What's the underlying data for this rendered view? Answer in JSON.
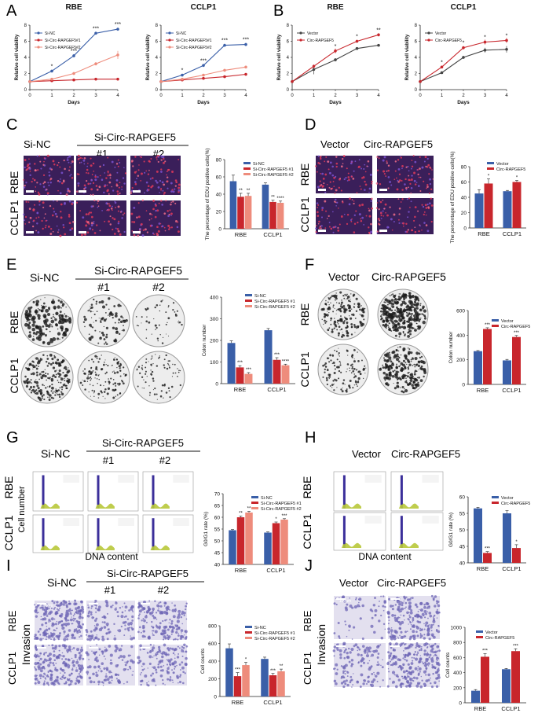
{
  "colors": {
    "blue": "#3a5fa8",
    "red": "#c8262c",
    "salmon": "#ee8c7c",
    "grey": "#444444",
    "edu_bg": "#3a1f5a",
    "colony": "#1a1a1a",
    "invasion": "#6d66b5",
    "flow_fill": "#b8c83a",
    "flow_peak": "#3b2f9a"
  },
  "panels": {
    "A": {
      "letter": "A"
    },
    "B": {
      "letter": "B"
    },
    "C": {
      "letter": "C",
      "group1": "Si-NC",
      "group2": "Si-Circ-RAPGEF5",
      "sub1": "#1",
      "sub2": "#2",
      "row1": "RBE",
      "row2": "CCLP1"
    },
    "D": {
      "letter": "D",
      "group1": "Vector",
      "group2": "Circ-RAPGEF5",
      "row1": "RBE",
      "row2": "CCLP1"
    },
    "E": {
      "letter": "E",
      "group1": "Si-NC",
      "group2": "Si-Circ-RAPGEF5",
      "sub1": "#1",
      "sub2": "#2",
      "row1": "RBE",
      "row2": "CCLP1"
    },
    "F": {
      "letter": "F",
      "group1": "Vector",
      "group2": "Circ-RAPGEF5",
      "row1": "RBE",
      "row2": "CCLP1"
    },
    "G": {
      "letter": "G",
      "group1": "Si-NC",
      "group2": "Si-Circ-RAPGEF5",
      "sub1": "#1",
      "sub2": "#2",
      "row1": "RBE",
      "row2": "CCLP1",
      "ylab": "Cell number",
      "xlab": "DNA content"
    },
    "H": {
      "letter": "H",
      "group1": "Vector",
      "group2": "Circ-RAPGEF5",
      "row1": "RBE",
      "row2": "CCLP1",
      "xlab": "DNA content"
    },
    "I": {
      "letter": "I",
      "group1": "Si-NC",
      "group2": "Si-Circ-RAPGEF5",
      "sub1": "#1",
      "sub2": "#2",
      "row1": "RBE",
      "row2": "CCLP1",
      "side": "Invasion",
      "scale": "100um"
    },
    "J": {
      "letter": "J",
      "group1": "Vector",
      "group2": "Circ-RAPGEF5",
      "row1": "RBE",
      "row2": "CCLP1",
      "side": "Invasion",
      "scale": "100um"
    }
  },
  "chart_data": [
    {
      "id": "A1",
      "type": "line",
      "title": "RBE",
      "xlabel": "Days",
      "ylabel": "Relative cell viability",
      "x": [
        0,
        1,
        2,
        3,
        4
      ],
      "xlim": [
        0,
        4
      ],
      "ylim": [
        0,
        8
      ],
      "yticks": [
        0,
        2,
        4,
        6,
        8
      ],
      "series": [
        {
          "name": "Si-NC",
          "color": "blue",
          "values": [
            1,
            2.3,
            4.2,
            7.0,
            7.5
          ],
          "err": [
            0.1,
            0.1,
            0.2,
            0.2,
            0.2
          ]
        },
        {
          "name": "Si-Circ-RAPGEF5#1",
          "color": "red",
          "values": [
            1,
            1.1,
            1.2,
            1.3,
            1.3
          ],
          "err": [
            0.05,
            0.05,
            0.1,
            0.1,
            0.1
          ]
        },
        {
          "name": "Si-Circ-RAPGEF5#2",
          "color": "salmon",
          "values": [
            1,
            1.3,
            2.0,
            3.2,
            4.3
          ],
          "err": [
            0.05,
            0.1,
            0.2,
            0.2,
            0.5
          ]
        }
      ],
      "sig": [
        {
          "x": 1,
          "y": 2.3,
          "t": "*"
        },
        {
          "x": 2,
          "y": 4.2,
          "t": "***"
        },
        {
          "x": 3,
          "y": 7.0,
          "t": "***"
        },
        {
          "x": 4,
          "y": 7.5,
          "t": "***"
        }
      ]
    },
    {
      "id": "A2",
      "type": "line",
      "title": "CCLP1",
      "xlabel": "Days",
      "ylabel": "Relative cell viability",
      "x": [
        0,
        1,
        2,
        3,
        4
      ],
      "xlim": [
        0,
        4
      ],
      "ylim": [
        0,
        8
      ],
      "yticks": [
        0,
        2,
        4,
        6,
        8
      ],
      "series": [
        {
          "name": "Si-NC",
          "color": "blue",
          "values": [
            1,
            1.8,
            3.0,
            5.5,
            5.6
          ],
          "err": [
            0.1,
            0.1,
            0.2,
            0.2,
            0.2
          ]
        },
        {
          "name": "Si-Circ-RAPGEF5#1",
          "color": "red",
          "values": [
            1,
            1.2,
            1.4,
            1.6,
            1.9
          ],
          "err": [
            0.05,
            0.05,
            0.1,
            0.1,
            0.1
          ]
        },
        {
          "name": "Si-Circ-RAPGEF5#2",
          "color": "salmon",
          "values": [
            1,
            1.3,
            1.8,
            2.4,
            2.8
          ],
          "err": [
            0.05,
            0.1,
            0.1,
            0.1,
            0.1
          ]
        }
      ],
      "sig": [
        {
          "x": 1,
          "y": 1.8,
          "t": "*"
        },
        {
          "x": 2,
          "y": 3.0,
          "t": "***"
        },
        {
          "x": 3,
          "y": 5.5,
          "t": "***"
        },
        {
          "x": 4,
          "y": 5.6,
          "t": "***"
        }
      ]
    },
    {
      "id": "B1",
      "type": "line",
      "title": "RBE",
      "xlabel": "Days",
      "ylabel": "Relative cell viability",
      "x": [
        0,
        1,
        2,
        3,
        4
      ],
      "xlim": [
        0,
        4
      ],
      "ylim": [
        0,
        8
      ],
      "yticks": [
        0,
        2,
        4,
        6,
        8
      ],
      "series": [
        {
          "name": "Vector",
          "color": "grey",
          "values": [
            1,
            2.5,
            3.7,
            5.1,
            5.5
          ],
          "err": [
            0.1,
            0.6,
            0.2,
            0.1,
            0.1
          ]
        },
        {
          "name": "Circ-RAPGEF5",
          "color": "red",
          "values": [
            1,
            2.9,
            4.8,
            6.0,
            6.8
          ],
          "err": [
            0.1,
            0.2,
            0.3,
            0.2,
            0.2
          ]
        }
      ],
      "sig": [
        {
          "x": 2,
          "y": 4.8,
          "t": "*"
        },
        {
          "x": 3,
          "y": 6.0,
          "t": "*"
        },
        {
          "x": 4,
          "y": 6.8,
          "t": "**"
        }
      ]
    },
    {
      "id": "B2",
      "type": "line",
      "title": "CCLP1",
      "xlabel": "Days",
      "ylabel": "Relative cell viability",
      "x": [
        0,
        1,
        2,
        3,
        4
      ],
      "xlim": [
        0,
        4
      ],
      "ylim": [
        0,
        8
      ],
      "yticks": [
        0,
        2,
        4,
        6,
        8
      ],
      "series": [
        {
          "name": "Vector",
          "color": "grey",
          "values": [
            1,
            2.1,
            4.0,
            4.9,
            5.0
          ],
          "err": [
            0.1,
            0.1,
            0.2,
            0.3,
            0.4
          ]
        },
        {
          "name": "Circ-RAPGEF5",
          "color": "red",
          "values": [
            1,
            2.8,
            5.2,
            5.9,
            6.1
          ],
          "err": [
            0.1,
            0.1,
            0.2,
            0.3,
            0.3
          ]
        }
      ],
      "sig": [
        {
          "x": 1,
          "y": 2.8,
          "t": "*"
        },
        {
          "x": 2,
          "y": 5.2,
          "t": "*"
        },
        {
          "x": 3,
          "y": 5.9,
          "t": "*"
        },
        {
          "x": 4,
          "y": 6.1,
          "t": "*"
        }
      ]
    },
    {
      "id": "C",
      "type": "bar",
      "ylabel": "The percentage of EDU positive cells(%)",
      "categories": [
        "RBE",
        "CCLP1"
      ],
      "ylim": [
        0,
        80
      ],
      "yticks": [
        0,
        20,
        40,
        60,
        80
      ],
      "series": [
        {
          "name": "Si-NC",
          "color": "blue",
          "values": [
            55,
            51
          ],
          "err": [
            7,
            2
          ],
          "sig": [
            "",
            ""
          ]
        },
        {
          "name": "Si-Circ-RAPGEF5 #1",
          "color": "red",
          "values": [
            37,
            31
          ],
          "err": [
            4,
            2
          ],
          "sig": [
            "**",
            "**"
          ]
        },
        {
          "name": "Si-Circ-RAPGEF5 #2",
          "color": "salmon",
          "values": [
            38,
            30
          ],
          "err": [
            3,
            2
          ],
          "sig": [
            "**",
            "****"
          ]
        }
      ]
    },
    {
      "id": "D",
      "type": "bar",
      "ylabel": "The percentage of EDU positive cells(%)",
      "categories": [
        "RBE",
        "CCLP1"
      ],
      "ylim": [
        0,
        80
      ],
      "yticks": [
        0,
        20,
        40,
        60,
        80
      ],
      "series": [
        {
          "name": "Vector",
          "color": "blue",
          "values": [
            45,
            48
          ],
          "err": [
            5,
            1
          ],
          "sig": [
            "",
            ""
          ]
        },
        {
          "name": "Circ-RAPGEF5",
          "color": "red",
          "values": [
            58,
            60
          ],
          "err": [
            6,
            2
          ],
          "sig": [
            "*",
            "*"
          ]
        }
      ]
    },
    {
      "id": "E",
      "type": "bar",
      "ylabel": "Colon number",
      "categories": [
        "RBE",
        "CCLP1"
      ],
      "ylim": [
        0,
        400
      ],
      "yticks": [
        0,
        100,
        200,
        300,
        400
      ],
      "series": [
        {
          "name": "Si-NC",
          "color": "blue",
          "values": [
            188,
            247
          ],
          "err": [
            10,
            8
          ],
          "sig": [
            "",
            ""
          ]
        },
        {
          "name": "Si-Circ-RAPGEF5 #1",
          "color": "red",
          "values": [
            75,
            110
          ],
          "err": [
            8,
            10
          ],
          "sig": [
            "***",
            "***"
          ]
        },
        {
          "name": "Si-Circ-RAPGEF5 #2",
          "color": "salmon",
          "values": [
            45,
            85
          ],
          "err": [
            6,
            5
          ],
          "sig": [
            "***",
            "****"
          ]
        }
      ]
    },
    {
      "id": "F",
      "type": "bar",
      "ylabel": "Colon number",
      "categories": [
        "RBE",
        "CCLP1"
      ],
      "ylim": [
        0,
        600
      ],
      "yticks": [
        0,
        200,
        400,
        600
      ],
      "series": [
        {
          "name": "Vector",
          "color": "blue",
          "values": [
            270,
            195
          ],
          "err": [
            5,
            8
          ],
          "sig": [
            "",
            ""
          ]
        },
        {
          "name": "Circ-RAPGEF5",
          "color": "red",
          "values": [
            450,
            385
          ],
          "err": [
            10,
            12
          ],
          "sig": [
            "***",
            "***"
          ]
        }
      ]
    },
    {
      "id": "G",
      "type": "bar",
      "ylabel": "G0/G1 rate (%)",
      "categories": [
        "RBE",
        "CCLP1"
      ],
      "ylim": [
        40,
        70
      ],
      "yticks": [
        40,
        45,
        50,
        55,
        60,
        65,
        70
      ],
      "series": [
        {
          "name": "Si-NC",
          "color": "blue",
          "values": [
            54.5,
            53.5
          ],
          "err": [
            0.3,
            0.3
          ],
          "sig": [
            "",
            ""
          ]
        },
        {
          "name": "Si-Circ-RAPGEF5 #1",
          "color": "red",
          "values": [
            60,
            57.5
          ],
          "err": [
            0.5,
            0.5
          ],
          "sig": [
            "**",
            "*"
          ]
        },
        {
          "name": "Si-Circ-RAPGEF5 #2",
          "color": "salmon",
          "values": [
            62,
            59
          ],
          "err": [
            0.5,
            0.4
          ],
          "sig": [
            "**",
            "***"
          ]
        }
      ]
    },
    {
      "id": "H",
      "type": "bar",
      "ylabel": "G0/G1 rate (%)",
      "categories": [
        "RBE",
        "CCLP1"
      ],
      "ylim": [
        40,
        60
      ],
      "yticks": [
        40,
        45,
        50,
        55,
        60
      ],
      "series": [
        {
          "name": "Vector",
          "color": "blue",
          "values": [
            56.5,
            55
          ],
          "err": [
            0.3,
            0.8
          ],
          "sig": [
            "",
            ""
          ]
        },
        {
          "name": "Circ-RAPGEF5",
          "color": "red",
          "values": [
            43,
            44.5
          ],
          "err": [
            0.4,
            1
          ],
          "sig": [
            "***",
            "*"
          ]
        }
      ]
    },
    {
      "id": "I",
      "type": "bar",
      "ylabel": "Cell counts",
      "categories": [
        "RBE",
        "CCLP1"
      ],
      "ylim": [
        0,
        800
      ],
      "yticks": [
        0,
        200,
        400,
        600,
        800
      ],
      "series": [
        {
          "name": "Si-NC",
          "color": "blue",
          "values": [
            545,
            425
          ],
          "err": [
            50,
            20
          ],
          "sig": [
            "",
            ""
          ]
        },
        {
          "name": "Si-Circ-RAPGEF5 #1",
          "color": "red",
          "values": [
            230,
            240
          ],
          "err": [
            40,
            20
          ],
          "sig": [
            "***",
            "***"
          ]
        },
        {
          "name": "Si-Circ-RAPGEF5 #2",
          "color": "salmon",
          "values": [
            355,
            285
          ],
          "err": [
            30,
            25
          ],
          "sig": [
            "*",
            "**"
          ]
        }
      ]
    },
    {
      "id": "J",
      "type": "bar",
      "ylabel": "Cell counts",
      "categories": [
        "RBE",
        "CCLP1"
      ],
      "ylim": [
        0,
        1000
      ],
      "yticks": [
        0,
        200,
        400,
        600,
        800,
        1000
      ],
      "series": [
        {
          "name": "Vector",
          "color": "blue",
          "values": [
            160,
            445
          ],
          "err": [
            15,
            10
          ],
          "sig": [
            "",
            ""
          ]
        },
        {
          "name": "Circ-RAPGEF5",
          "color": "red",
          "values": [
            610,
            685
          ],
          "err": [
            40,
            30
          ],
          "sig": [
            "***",
            "***"
          ]
        }
      ]
    }
  ]
}
